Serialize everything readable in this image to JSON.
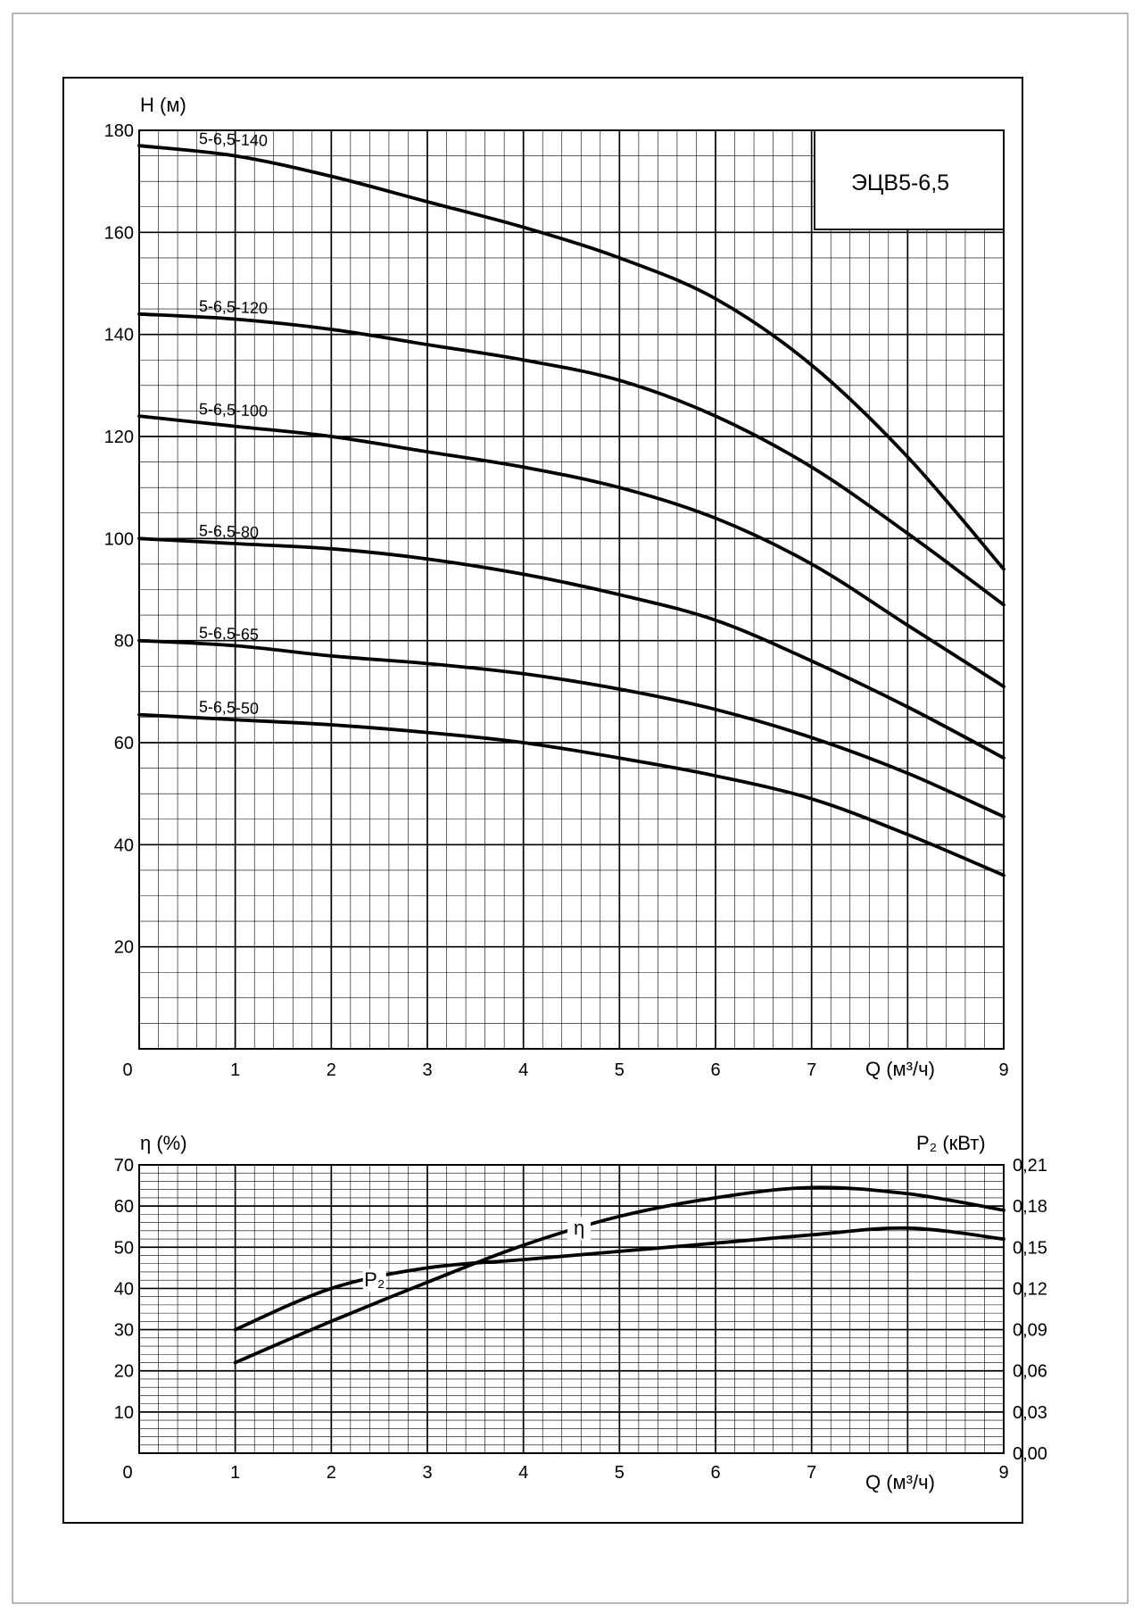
{
  "chart_data": [
    {
      "type": "line",
      "title": "ЭЦВ5-6,5",
      "xlabel": "Q (м³/ч)",
      "ylabel": "H (м)",
      "xlim": [
        0,
        9
      ],
      "ylim": [
        0,
        180
      ],
      "x_ticks": [
        "0",
        "1",
        "2",
        "3",
        "4",
        "5",
        "6",
        "7",
        "9"
      ],
      "y_ticks": [
        "20",
        "40",
        "60",
        "80",
        "100",
        "120",
        "140",
        "160",
        "180"
      ],
      "grid": true,
      "x": [
        0,
        1,
        2,
        3,
        4,
        5,
        6,
        7,
        8,
        9
      ],
      "series": [
        {
          "name": "5-6,5-140",
          "values": [
            177,
            175,
            171,
            166,
            161,
            155,
            147,
            134,
            116,
            94
          ]
        },
        {
          "name": "5-6,5-120",
          "values": [
            144,
            143,
            141,
            138,
            135,
            131,
            124,
            114,
            101,
            87
          ]
        },
        {
          "name": "5-6,5-100",
          "values": [
            124,
            122,
            120,
            117,
            114,
            110,
            104,
            95,
            83,
            71
          ]
        },
        {
          "name": "5-6,5-80",
          "values": [
            100,
            99,
            98,
            96,
            93,
            89,
            84,
            76,
            67,
            57
          ]
        },
        {
          "name": "5-6,5-65",
          "values": [
            80,
            79,
            77,
            75.5,
            73.5,
            70.5,
            66.5,
            61,
            54,
            45.5
          ]
        },
        {
          "name": "5-6,5-50",
          "values": [
            65.5,
            64.5,
            63.5,
            62,
            60,
            57,
            53.5,
            49,
            42,
            34
          ]
        }
      ]
    },
    {
      "type": "line",
      "xlabel": "Q (м³/ч)",
      "ylabel": "η (%)",
      "y2label": "P₂ (кВт)",
      "xlim": [
        0,
        9
      ],
      "ylim": [
        0,
        70
      ],
      "y2lim": [
        0,
        0.21
      ],
      "x_ticks": [
        "0",
        "1",
        "2",
        "3",
        "4",
        "5",
        "6",
        "7",
        "9"
      ],
      "y_ticks": [
        "10",
        "20",
        "30",
        "40",
        "50",
        "60",
        "70"
      ],
      "y2_ticks": [
        "0,00",
        "0,03",
        "0,06",
        "0,09",
        "0,12",
        "0,15",
        "0,18",
        "0,21"
      ],
      "grid": true,
      "x": [
        1,
        2,
        3,
        4,
        5,
        6,
        7,
        8,
        9
      ],
      "series": [
        {
          "name": "η",
          "axis": "left",
          "values": [
            22,
            32,
            41.5,
            50.5,
            57.5,
            62,
            64.5,
            63,
            59
          ]
        },
        {
          "name": "P₂",
          "axis": "right",
          "values": [
            0.09,
            0.12,
            0.135,
            0.141,
            0.147,
            0.153,
            0.159,
            0.164,
            0.156
          ]
        }
      ]
    }
  ]
}
